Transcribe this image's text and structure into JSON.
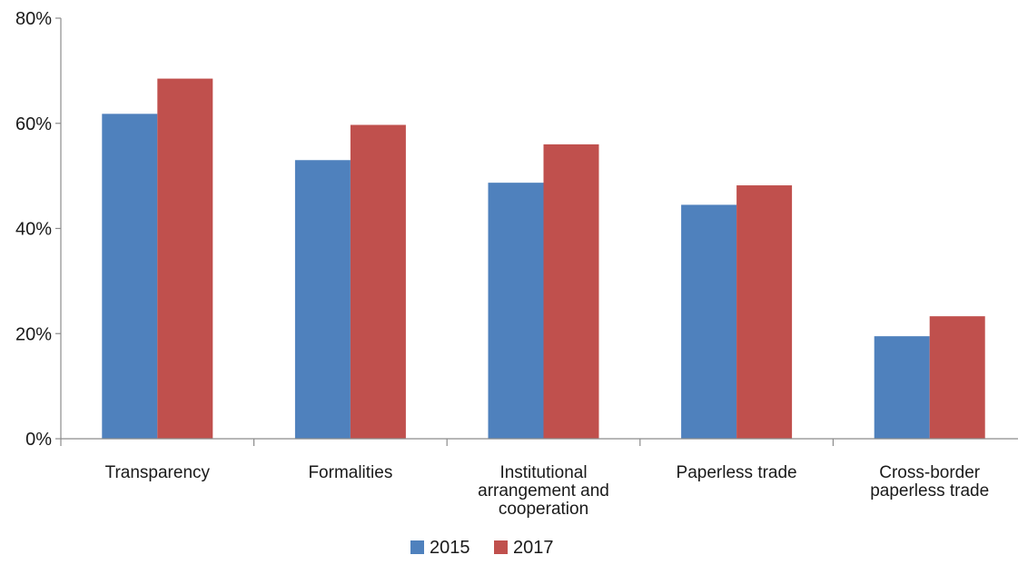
{
  "chart_data": {
    "type": "bar",
    "title": "",
    "xlabel": "",
    "ylabel": "",
    "ylim": [
      0,
      80
    ],
    "y_ticks": [
      0,
      20,
      40,
      60,
      80
    ],
    "y_tick_format": "%",
    "grid": false,
    "legend_position": "bottom-center",
    "categories": [
      [
        "Transparency"
      ],
      [
        "Formalities"
      ],
      [
        "Institutional",
        "arrangement and",
        "cooperation"
      ],
      [
        "Paperless trade"
      ],
      [
        "Cross-border",
        "paperless trade"
      ]
    ],
    "series": [
      {
        "name": "2015",
        "color": "#4f81bd",
        "values": [
          61.8,
          53.0,
          48.7,
          44.5,
          19.5
        ]
      },
      {
        "name": "2017",
        "color": "#c0504d",
        "values": [
          68.5,
          59.7,
          56.0,
          48.2,
          23.3
        ]
      }
    ]
  }
}
